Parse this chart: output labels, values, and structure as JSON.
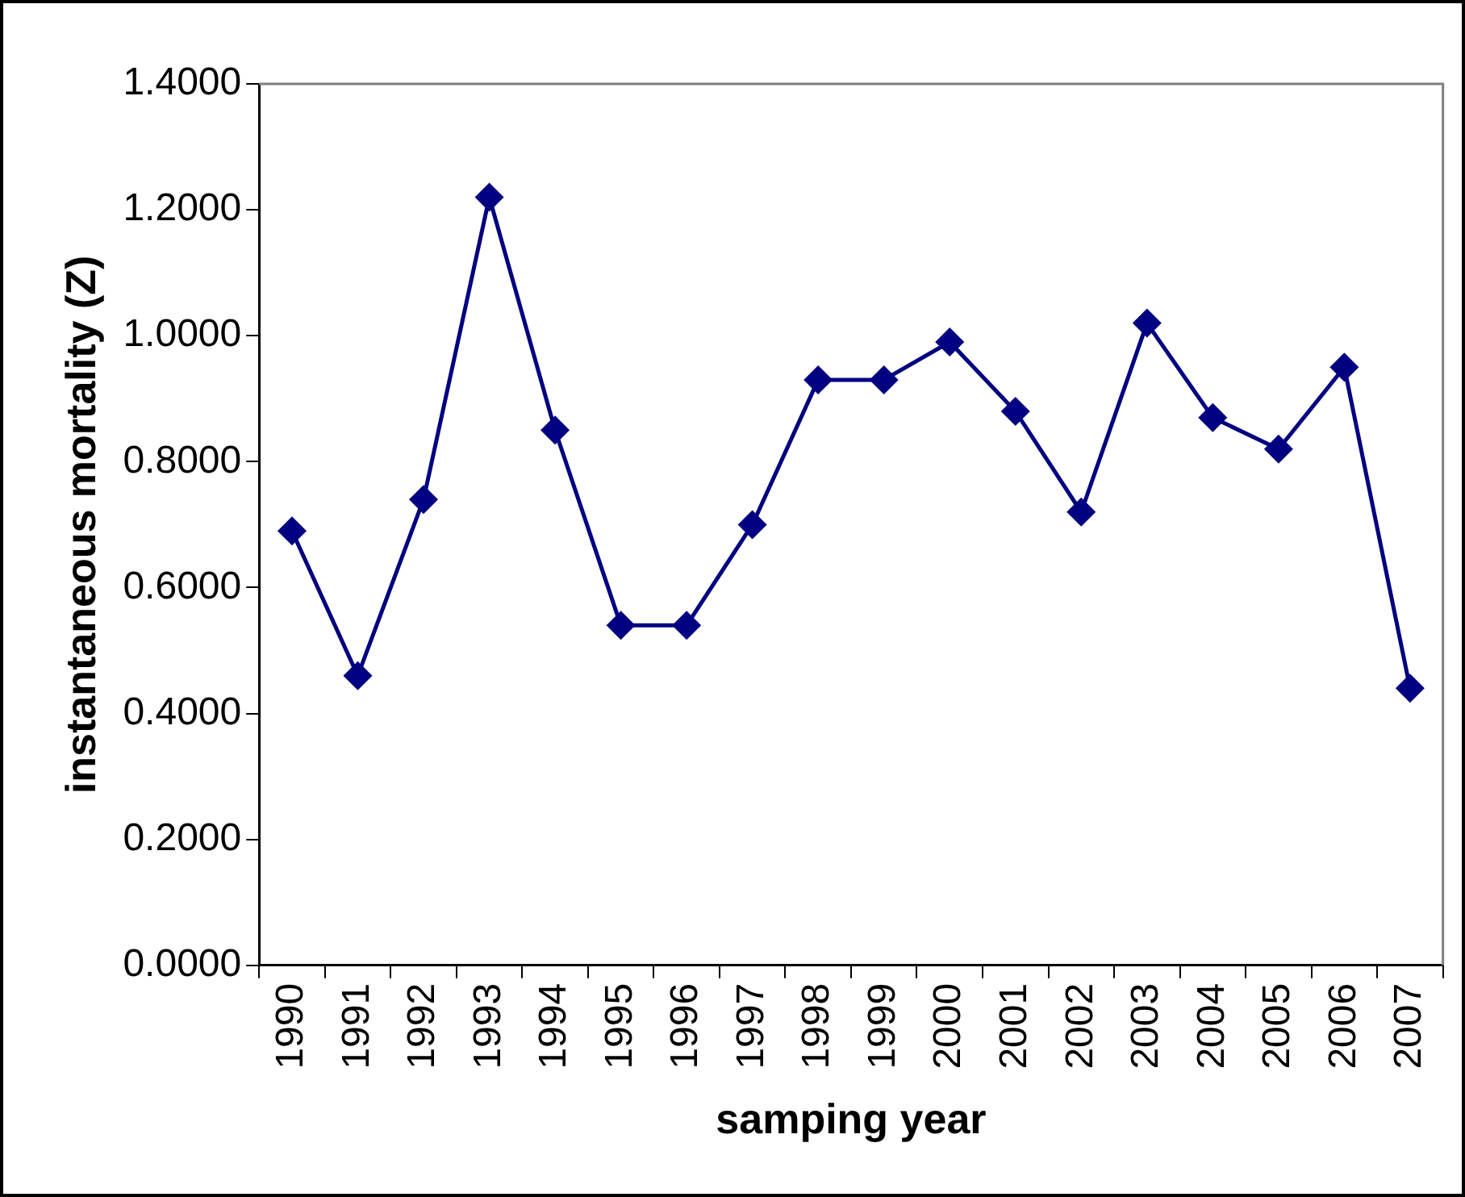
{
  "chart_data": {
    "type": "line",
    "xlabel": "samping year",
    "ylabel": "instantaneous mortality (Z)",
    "categories": [
      "1990",
      "1991",
      "1992",
      "1993",
      "1994",
      "1995",
      "1996",
      "1997",
      "1998",
      "1999",
      "2000",
      "2001",
      "2002",
      "2003",
      "2004",
      "2005",
      "2006",
      "2007"
    ],
    "series": [
      {
        "color": "#000080",
        "values": [
          0.69,
          0.46,
          0.74,
          1.22,
          0.85,
          0.54,
          0.54,
          0.7,
          0.93,
          0.93,
          0.99,
          0.88,
          0.72,
          1.02,
          0.87,
          0.82,
          0.95,
          0.44
        ]
      }
    ],
    "ylim": [
      0,
      1.4
    ],
    "yticks": [
      {
        "value": 0,
        "label": "0.0000"
      },
      {
        "value": 0.2,
        "label": "0.2000"
      },
      {
        "value": 0.4,
        "label": "0.4000"
      },
      {
        "value": 0.6,
        "label": "0.6000"
      },
      {
        "value": 0.8,
        "label": "0.8000"
      },
      {
        "value": 1.0,
        "label": "1.0000"
      },
      {
        "value": 1.2,
        "label": "1.2000"
      },
      {
        "value": 1.4,
        "label": "1.4000"
      }
    ],
    "grid": false,
    "legend": false,
    "marker": "diamond",
    "line_style": "solid"
  }
}
